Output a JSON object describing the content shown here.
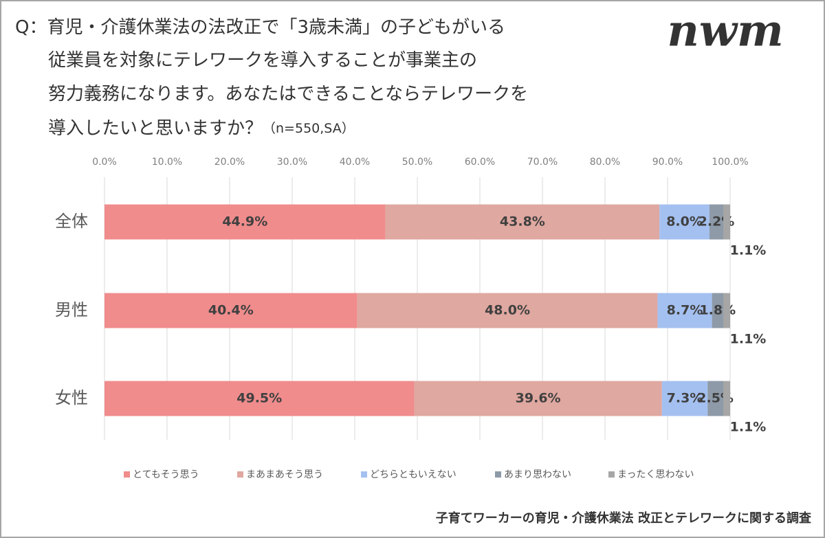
{
  "logo": "nwm",
  "source": "子育てワーカーの育児・介護休業法 改正とテレワークに関する調査",
  "chart_data": {
    "type": "stacked_barh",
    "title": [
      "Q：育児・介護休業法の法改正で「3歳未満」の子どもがいる",
      "従業員を対象にテレワークを導入することが事業主の",
      "努力義務になります。あなたはできることならテレワークを",
      "導入したいと思いますか？"
    ],
    "subtitle": "（n=550,SA）",
    "categories": [
      "全体",
      "男性",
      "女性"
    ],
    "series": [
      {
        "name": "とてもそう思う",
        "color": "#f08c8c",
        "values": [
          44.9,
          40.4,
          49.5
        ],
        "value_labels": [
          "44.9%",
          "40.4%",
          "49.5%"
        ]
      },
      {
        "name": "まあまあそう思う",
        "color": "#dfa8a0",
        "values": [
          43.8,
          48.0,
          39.6
        ],
        "value_labels": [
          "43.8%",
          "48.0%",
          "39.6%"
        ]
      },
      {
        "name": "どちらともいえない",
        "color": "#a4c0f0",
        "values": [
          8.0,
          8.7,
          7.3
        ],
        "value_labels": [
          "8.0%",
          "8.7%",
          "7.3%"
        ]
      },
      {
        "name": "あまり思わない",
        "color": "#8e9aa8",
        "values": [
          2.2,
          1.8,
          2.5
        ],
        "value_labels": [
          "2.2%",
          "1.8%",
          "2.5%"
        ]
      },
      {
        "name": "まったく思わない",
        "color": "#a6a6a6",
        "values": [
          1.1,
          1.1,
          1.1
        ],
        "value_labels": [
          "1.1%",
          "1.1%",
          "1.1%"
        ]
      }
    ],
    "xlim": [
      0,
      100
    ],
    "xticks": [
      {
        "value": 0,
        "label": "0.0%"
      },
      {
        "value": 10,
        "label": "10.0%"
      },
      {
        "value": 20,
        "label": "20.0%"
      },
      {
        "value": 30,
        "label": "30.0%"
      },
      {
        "value": 40,
        "label": "40.0%"
      },
      {
        "value": 50,
        "label": "50.0%"
      },
      {
        "value": 60,
        "label": "60.0%"
      },
      {
        "value": 70,
        "label": "70.0%"
      },
      {
        "value": 80,
        "label": "80.0%"
      },
      {
        "value": 90,
        "label": "90.0%"
      },
      {
        "value": 100,
        "label": "100.0%"
      }
    ],
    "grid": true,
    "legend": "bottom"
  }
}
